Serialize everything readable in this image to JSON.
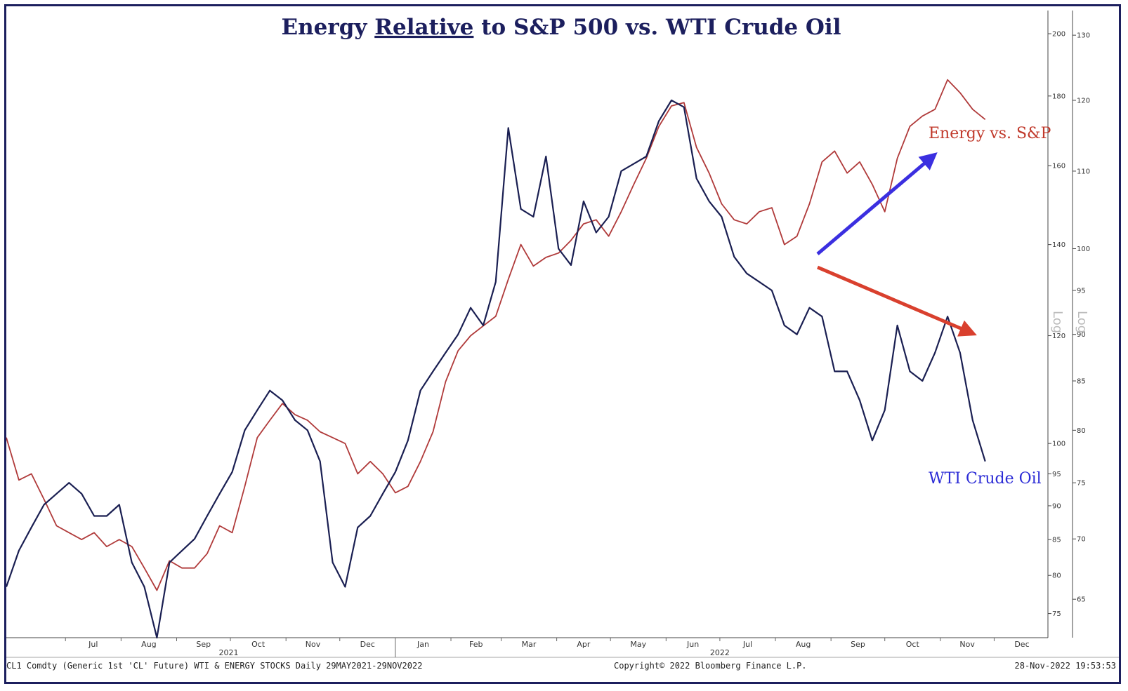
{
  "chart_data": {
    "type": "line",
    "title": {
      "part1": "Energy ",
      "part2": "Relative",
      "part3": " to S&P 500 vs. WTI Crude Oil"
    },
    "x_axis": {
      "months": [
        "Jul",
        "Aug",
        "Sep",
        "Oct",
        "Nov",
        "Dec",
        "Jan",
        "Feb",
        "Mar",
        "Apr",
        "May",
        "Jun",
        "Jul",
        "Aug",
        "Sep",
        "Oct",
        "Nov",
        "Dec"
      ],
      "years": [
        "2021",
        "2022"
      ]
    },
    "axis_left_energy": {
      "scale": "log",
      "ticks": [
        75,
        80,
        85,
        90,
        95,
        100,
        120,
        140,
        160,
        180,
        200
      ],
      "range": [
        72,
        208
      ],
      "label": "Log"
    },
    "axis_right_wti": {
      "scale": "log",
      "ticks": [
        65,
        70,
        75,
        80,
        85,
        90,
        95,
        100,
        110,
        120,
        130
      ],
      "range": [
        62,
        134
      ],
      "label": "Log"
    },
    "series": [
      {
        "name": "Energy vs. S&P",
        "color": "#b03a3a",
        "axis": "axis_left_energy",
        "points": [
          [
            "2021-05-29",
            101
          ],
          [
            "2021-06-05",
            94
          ],
          [
            "2021-06-12",
            95
          ],
          [
            "2021-06-19",
            91
          ],
          [
            "2021-06-26",
            87
          ],
          [
            "2021-07-03",
            86
          ],
          [
            "2021-07-10",
            85
          ],
          [
            "2021-07-17",
            86
          ],
          [
            "2021-07-24",
            84
          ],
          [
            "2021-07-31",
            85
          ],
          [
            "2021-08-07",
            84
          ],
          [
            "2021-08-14",
            81
          ],
          [
            "2021-08-21",
            78
          ],
          [
            "2021-08-28",
            82
          ],
          [
            "2021-09-04",
            81
          ],
          [
            "2021-09-11",
            81
          ],
          [
            "2021-09-18",
            83
          ],
          [
            "2021-09-25",
            87
          ],
          [
            "2021-10-02",
            86
          ],
          [
            "2021-10-09",
            93
          ],
          [
            "2021-10-16",
            101
          ],
          [
            "2021-10-23",
            104
          ],
          [
            "2021-10-30",
            107
          ],
          [
            "2021-11-06",
            105
          ],
          [
            "2021-11-13",
            104
          ],
          [
            "2021-11-20",
            102
          ],
          [
            "2021-11-27",
            101
          ],
          [
            "2021-12-04",
            100
          ],
          [
            "2021-12-11",
            95
          ],
          [
            "2021-12-18",
            97
          ],
          [
            "2021-12-25",
            95
          ],
          [
            "2022-01-01",
            92
          ],
          [
            "2022-01-08",
            93
          ],
          [
            "2022-01-15",
            97
          ],
          [
            "2022-01-22",
            102
          ],
          [
            "2022-01-29",
            111
          ],
          [
            "2022-02-05",
            117
          ],
          [
            "2022-02-12",
            120
          ],
          [
            "2022-02-19",
            122
          ],
          [
            "2022-02-26",
            124
          ],
          [
            "2022-03-05",
            132
          ],
          [
            "2022-03-12",
            140
          ],
          [
            "2022-03-19",
            135
          ],
          [
            "2022-03-26",
            137
          ],
          [
            "2022-04-02",
            138
          ],
          [
            "2022-04-09",
            141
          ],
          [
            "2022-04-16",
            145
          ],
          [
            "2022-04-23",
            146
          ],
          [
            "2022-04-30",
            142
          ],
          [
            "2022-05-07",
            148
          ],
          [
            "2022-05-14",
            155
          ],
          [
            "2022-05-21",
            162
          ],
          [
            "2022-05-28",
            171
          ],
          [
            "2022-06-04",
            177
          ],
          [
            "2022-06-11",
            178
          ],
          [
            "2022-06-18",
            165
          ],
          [
            "2022-06-25",
            158
          ],
          [
            "2022-07-02",
            150
          ],
          [
            "2022-07-09",
            146
          ],
          [
            "2022-07-16",
            145
          ],
          [
            "2022-07-23",
            148
          ],
          [
            "2022-07-30",
            149
          ],
          [
            "2022-08-06",
            140
          ],
          [
            "2022-08-13",
            142
          ],
          [
            "2022-08-20",
            150
          ],
          [
            "2022-08-27",
            161
          ],
          [
            "2022-09-03",
            164
          ],
          [
            "2022-09-10",
            158
          ],
          [
            "2022-09-17",
            161
          ],
          [
            "2022-09-24",
            155
          ],
          [
            "2022-10-01",
            148
          ],
          [
            "2022-10-08",
            162
          ],
          [
            "2022-10-15",
            171
          ],
          [
            "2022-10-22",
            174
          ],
          [
            "2022-10-29",
            176
          ],
          [
            "2022-11-05",
            185
          ],
          [
            "2022-11-12",
            181
          ],
          [
            "2022-11-19",
            176
          ],
          [
            "2022-11-26",
            173
          ]
        ]
      },
      {
        "name": "WTI Crude Oil",
        "color": "#1a1f52",
        "axis": "axis_right_wti",
        "points": [
          [
            "2021-05-29",
            66
          ],
          [
            "2021-06-05",
            69
          ],
          [
            "2021-06-12",
            71
          ],
          [
            "2021-06-19",
            73
          ],
          [
            "2021-06-26",
            74
          ],
          [
            "2021-07-03",
            75
          ],
          [
            "2021-07-10",
            74
          ],
          [
            "2021-07-17",
            72
          ],
          [
            "2021-07-24",
            72
          ],
          [
            "2021-07-31",
            73
          ],
          [
            "2021-08-07",
            68
          ],
          [
            "2021-08-14",
            66
          ],
          [
            "2021-08-21",
            62
          ],
          [
            "2021-08-28",
            68
          ],
          [
            "2021-09-04",
            69
          ],
          [
            "2021-09-11",
            70
          ],
          [
            "2021-09-18",
            72
          ],
          [
            "2021-09-25",
            74
          ],
          [
            "2021-10-02",
            76
          ],
          [
            "2021-10-09",
            80
          ],
          [
            "2021-10-16",
            82
          ],
          [
            "2021-10-23",
            84
          ],
          [
            "2021-10-30",
            83
          ],
          [
            "2021-11-06",
            81
          ],
          [
            "2021-11-13",
            80
          ],
          [
            "2021-11-20",
            77
          ],
          [
            "2021-11-27",
            68
          ],
          [
            "2021-12-04",
            66
          ],
          [
            "2021-12-11",
            71
          ],
          [
            "2021-12-18",
            72
          ],
          [
            "2021-12-25",
            74
          ],
          [
            "2022-01-01",
            76
          ],
          [
            "2022-01-08",
            79
          ],
          [
            "2022-01-15",
            84
          ],
          [
            "2022-01-22",
            86
          ],
          [
            "2022-01-29",
            88
          ],
          [
            "2022-02-05",
            90
          ],
          [
            "2022-02-12",
            93
          ],
          [
            "2022-02-19",
            91
          ],
          [
            "2022-02-26",
            96
          ],
          [
            "2022-03-05",
            116
          ],
          [
            "2022-03-12",
            105
          ],
          [
            "2022-03-19",
            104
          ],
          [
            "2022-03-26",
            112
          ],
          [
            "2022-04-02",
            100
          ],
          [
            "2022-04-09",
            98
          ],
          [
            "2022-04-16",
            106
          ],
          [
            "2022-04-23",
            102
          ],
          [
            "2022-04-30",
            104
          ],
          [
            "2022-05-07",
            110
          ],
          [
            "2022-05-14",
            111
          ],
          [
            "2022-05-21",
            112
          ],
          [
            "2022-05-28",
            117
          ],
          [
            "2022-06-04",
            120
          ],
          [
            "2022-06-11",
            119
          ],
          [
            "2022-06-18",
            109
          ],
          [
            "2022-06-25",
            106
          ],
          [
            "2022-07-02",
            104
          ],
          [
            "2022-07-09",
            99
          ],
          [
            "2022-07-16",
            97
          ],
          [
            "2022-07-23",
            96
          ],
          [
            "2022-07-30",
            95
          ],
          [
            "2022-08-06",
            91
          ],
          [
            "2022-08-13",
            90
          ],
          [
            "2022-08-20",
            93
          ],
          [
            "2022-08-27",
            92
          ],
          [
            "2022-09-03",
            86
          ],
          [
            "2022-09-10",
            86
          ],
          [
            "2022-09-17",
            83
          ],
          [
            "2022-09-24",
            79
          ],
          [
            "2022-10-01",
            82
          ],
          [
            "2022-10-08",
            91
          ],
          [
            "2022-10-15",
            86
          ],
          [
            "2022-10-22",
            85
          ],
          [
            "2022-10-29",
            88
          ],
          [
            "2022-11-05",
            92
          ],
          [
            "2022-11-12",
            88
          ],
          [
            "2022-11-19",
            81
          ],
          [
            "2022-11-26",
            77
          ]
        ]
      }
    ],
    "annotations": [
      {
        "text": "Energy vs. S&P",
        "color": "#c0392b"
      },
      {
        "text": "WTI Crude Oil",
        "color": "#2b2bd6"
      }
    ],
    "arrows": [
      {
        "color": "#3b2fe0",
        "direction": "up"
      },
      {
        "color": "#d9402e",
        "direction": "down"
      }
    ],
    "grid": false,
    "legend": "none"
  },
  "footer": {
    "left": "CL1 Comdty (Generic 1st 'CL' Future) WTI & ENERGY STOCKS  Daily 29MAY2021-29NOV2022",
    "center": "Copyright© 2022 Bloomberg Finance L.P.",
    "right": "28-Nov-2022 19:53:53"
  }
}
